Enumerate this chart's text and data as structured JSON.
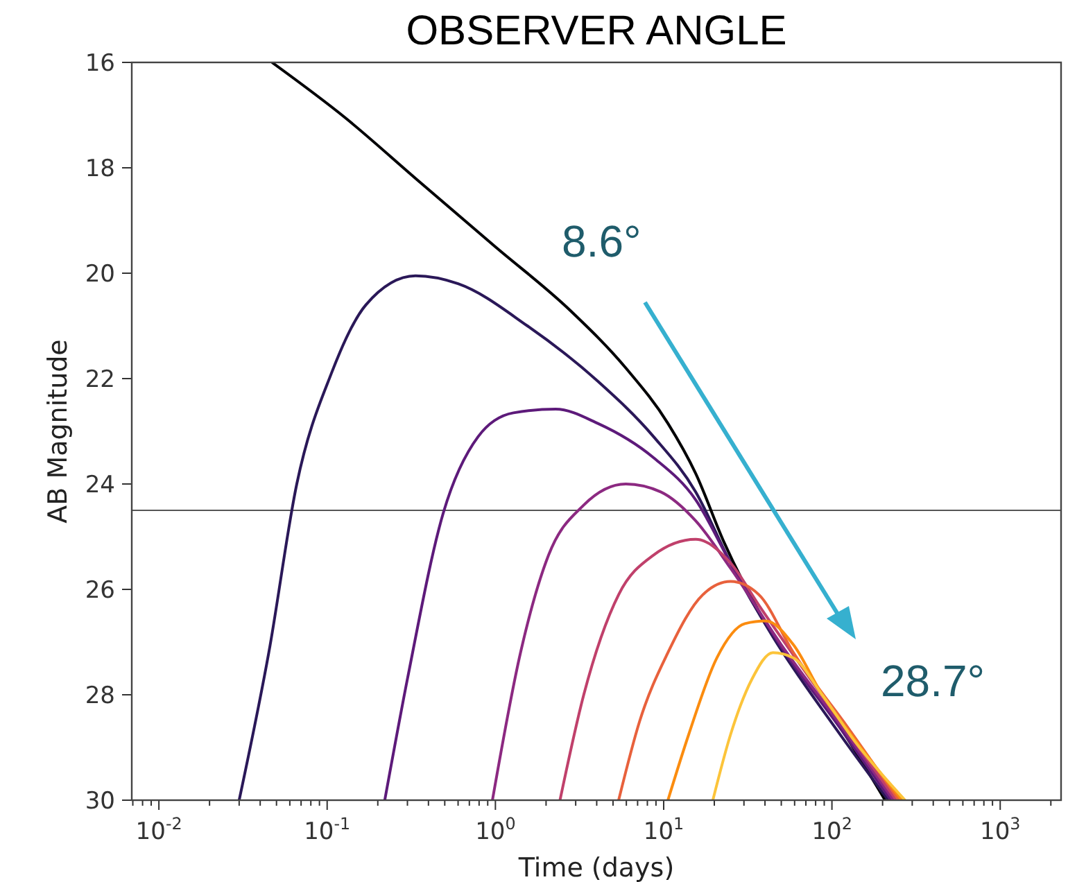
{
  "chart_data": {
    "type": "line",
    "title": "OBSERVER ANGLE",
    "xlabel": "Time (days)",
    "ylabel": "AB Magnitude",
    "log": "x",
    "grid": false,
    "xlim": [
      0.0069,
      2300
    ],
    "ylim": [
      30,
      16
    ],
    "xticks": [
      {
        "value": 0.01,
        "label": "10$^{-2}$"
      },
      {
        "value": 0.1,
        "label": "10$^{-1}$"
      },
      {
        "value": 1,
        "label": "10$^{0}$"
      },
      {
        "value": 10,
        "label": "10$^{1}$"
      },
      {
        "value": 100,
        "label": "10$^{2}$"
      },
      {
        "value": 1000,
        "label": "10$^{3}$"
      },
      {
        "value": 0.007,
        "label": null
      },
      {
        "value": 0.008,
        "label": null
      },
      {
        "value": 0.009,
        "label": null
      },
      {
        "value": 0.02,
        "label": null
      },
      {
        "value": 0.03,
        "label": null
      },
      {
        "value": 0.04,
        "label": null
      },
      {
        "value": 0.05,
        "label": null
      },
      {
        "value": 0.06,
        "label": null
      },
      {
        "value": 0.07,
        "label": null
      },
      {
        "value": 0.08,
        "label": null
      },
      {
        "value": 0.09,
        "label": null
      },
      {
        "value": 0.2,
        "label": null
      },
      {
        "value": 0.3,
        "label": null
      },
      {
        "value": 0.4,
        "label": null
      },
      {
        "value": 0.5,
        "label": null
      },
      {
        "value": 0.6,
        "label": null
      },
      {
        "value": 0.7,
        "label": null
      },
      {
        "value": 0.8,
        "label": null
      },
      {
        "value": 0.9,
        "label": null
      },
      {
        "value": 2,
        "label": null
      },
      {
        "value": 3,
        "label": null
      },
      {
        "value": 4,
        "label": null
      },
      {
        "value": 5,
        "label": null
      },
      {
        "value": 6,
        "label": null
      },
      {
        "value": 7,
        "label": null
      },
      {
        "value": 8,
        "label": null
      },
      {
        "value": 9,
        "label": null
      },
      {
        "value": 20,
        "label": null
      },
      {
        "value": 30,
        "label": null
      },
      {
        "value": 40,
        "label": null
      },
      {
        "value": 50,
        "label": null
      },
      {
        "value": 60,
        "label": null
      },
      {
        "value": 70,
        "label": null
      },
      {
        "value": 80,
        "label": null
      },
      {
        "value": 90,
        "label": null
      },
      {
        "value": 200,
        "label": null
      },
      {
        "value": 300,
        "label": null
      },
      {
        "value": 400,
        "label": null
      },
      {
        "value": 500,
        "label": null
      },
      {
        "value": 600,
        "label": null
      },
      {
        "value": 700,
        "label": null
      },
      {
        "value": 800,
        "label": null
      },
      {
        "value": 900,
        "label": null
      },
      {
        "value": 2000,
        "label": null
      }
    ],
    "yticks": [
      16,
      18,
      20,
      22,
      24,
      26,
      28,
      30
    ],
    "ref_lines": [
      {
        "axis": "y",
        "value": 24.5,
        "color": "#555555"
      }
    ],
    "annotations": [
      "8.6°",
      "28.7°"
    ],
    "series": [
      {
        "color": "#000004",
        "x": [
          0.047,
          0.128,
          0.335,
          1,
          2.77,
          5.96,
          10.6,
          15.5,
          22.8,
          40.5,
          106,
          207
        ],
        "values": [
          16,
          17.05,
          18.2,
          19.5,
          20.7,
          21.8,
          22.85,
          23.8,
          25.1,
          26.65,
          28.5,
          30
        ]
      },
      {
        "color": "#2a1858",
        "x": [
          0.03,
          0.045,
          0.066,
          0.106,
          0.17,
          0.335,
          0.6,
          1.55,
          4.06,
          8.7,
          15.5,
          25,
          44.6,
          106,
          216
        ],
        "values": [
          30,
          27.2,
          24,
          21.9,
          20.6,
          20.05,
          20.2,
          21,
          22.05,
          23.1,
          24.15,
          25.5,
          26.9,
          28.65,
          30
        ]
      },
      {
        "color": "#5d1a7a",
        "x": [
          0.22,
          0.3,
          0.49,
          0.79,
          1.28,
          2.28,
          4.06,
          8.7,
          15.5,
          25,
          49,
          110,
          224
        ],
        "values": [
          30,
          27.7,
          24.55,
          23.1,
          22.65,
          22.58,
          22.85,
          23.5,
          24.3,
          25.5,
          27.05,
          28.6,
          30
        ]
      },
      {
        "color": "#8c2981",
        "x": [
          0.96,
          1.41,
          2.07,
          3.35,
          5.96,
          9.6,
          15.5,
          25,
          50,
          114,
          232
        ],
        "values": [
          30,
          27.2,
          25.35,
          24.4,
          24,
          24.15,
          24.7,
          25.6,
          27.05,
          28.6,
          30
        ]
      },
      {
        "color": "#c0406b",
        "x": [
          2.42,
          3.35,
          5.4,
          8.7,
          15.5,
          25,
          36.8,
          118,
          241
        ],
        "values": [
          30,
          28,
          26.1,
          25.35,
          25.05,
          25.5,
          26.3,
          28.6,
          30
        ]
      },
      {
        "color": "#e8613c",
        "x": [
          5.4,
          7.2,
          10.6,
          17.1,
          25,
          36.8,
          59,
          123,
          250
        ],
        "values": [
          30,
          28.5,
          27.2,
          26.1,
          25.85,
          26.1,
          27.2,
          28.6,
          30
        ]
      },
      {
        "color": "#fb8c0f",
        "x": [
          10.6,
          14.1,
          20.7,
          30.4,
          40.5,
          59,
          87.5,
          133,
          261
        ],
        "values": [
          30,
          28.75,
          27.3,
          26.65,
          26.6,
          27.05,
          28,
          28.8,
          30
        ]
      },
      {
        "color": "#fcc43a",
        "x": [
          19.6,
          25,
          33.5,
          44.6,
          59,
          87.5,
          138,
          272
        ],
        "values": [
          30,
          28.75,
          27.7,
          27.2,
          27.3,
          28,
          28.9,
          30
        ]
      }
    ]
  }
}
